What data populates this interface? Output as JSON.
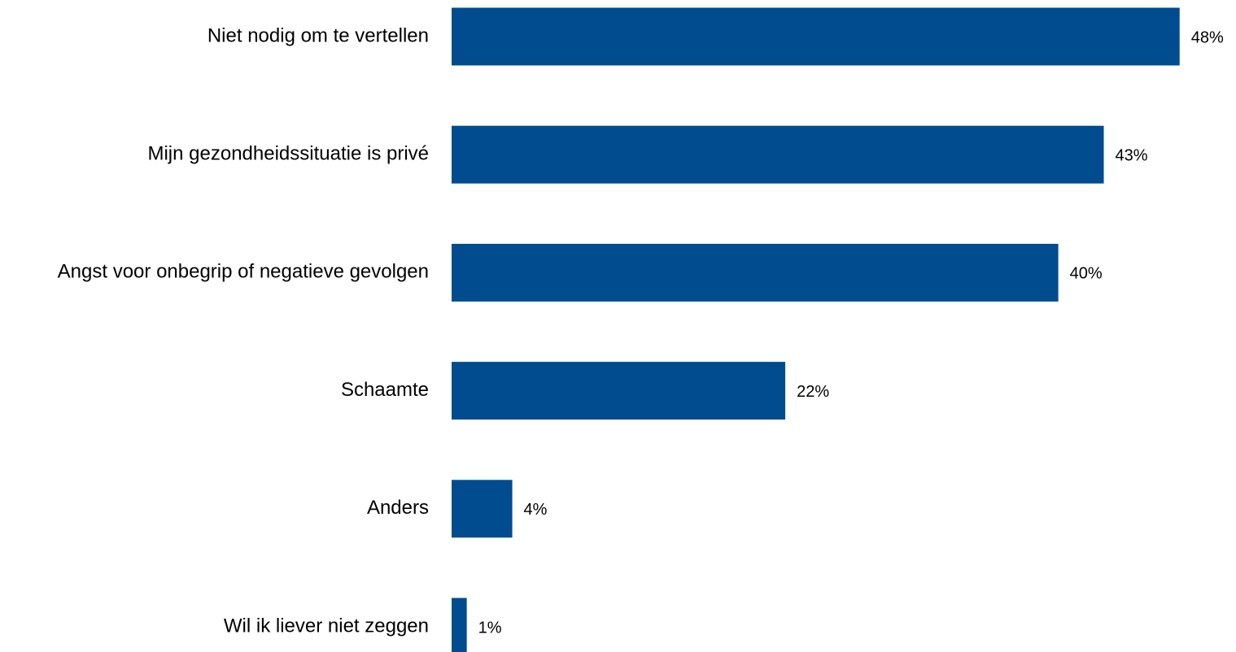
{
  "chart_data": {
    "type": "bar",
    "orientation": "horizontal",
    "categories": [
      "Niet nodig om te vertellen",
      "Mijn gezondheidssituatie is privé",
      "Angst voor onbegrip of negatieve gevolgen",
      "Schaamte",
      "Anders",
      "Wil ik liever niet zeggen"
    ],
    "values": [
      48,
      43,
      40,
      22,
      4,
      1
    ],
    "value_labels": [
      "48%",
      "43%",
      "40%",
      "22%",
      "4%",
      "1%"
    ],
    "color": "#004c8f",
    "xlim": [
      0,
      50
    ]
  }
}
